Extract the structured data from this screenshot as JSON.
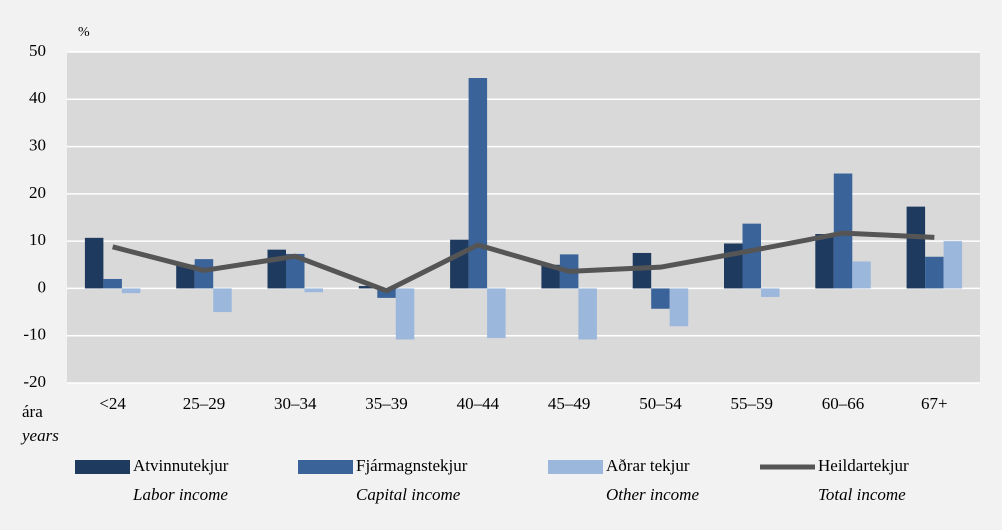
{
  "chart_data": {
    "type": "bar",
    "y_unit": "%",
    "x_label": "ára",
    "x_label_en": "years",
    "categories": [
      "<24",
      "25–29",
      "30–34",
      "35–39",
      "40–44",
      "45–49",
      "50–54",
      "55–59",
      "60–66",
      "67+"
    ],
    "series": [
      {
        "name": "Atvinnutekjur",
        "name_en": "Labor income",
        "type": "bar",
        "color": "#1f3a5f",
        "values": [
          10.7,
          5,
          8.2,
          0.5,
          10.3,
          5,
          7.5,
          9.5,
          11.5,
          17.3
        ]
      },
      {
        "name": "Fjármagnstekjur",
        "name_en": "Capital income",
        "type": "bar",
        "color": "#3a6399",
        "values": [
          2,
          6.2,
          7.3,
          -2,
          44.5,
          7.2,
          -4.3,
          13.7,
          24.3,
          6.7
        ]
      },
      {
        "name": "Aðrar tekjur",
        "name_en": "Other income",
        "type": "bar",
        "color": "#9bb7dc",
        "values": [
          -1,
          -5,
          -0.8,
          -10.8,
          -10.5,
          -10.8,
          -8,
          -1.8,
          5.7,
          10
        ]
      },
      {
        "name": "Heildartekjur",
        "name_en": "Total income",
        "type": "line",
        "color": "#555555",
        "values": [
          8.8,
          3.8,
          6.8,
          -0.5,
          9.2,
          3.6,
          4.5,
          8,
          11.7,
          10.8
        ]
      }
    ],
    "ylim": [
      -20,
      50
    ],
    "yticks": [
      -20,
      -10,
      0,
      10,
      20,
      30,
      40,
      50
    ],
    "grid": true
  }
}
